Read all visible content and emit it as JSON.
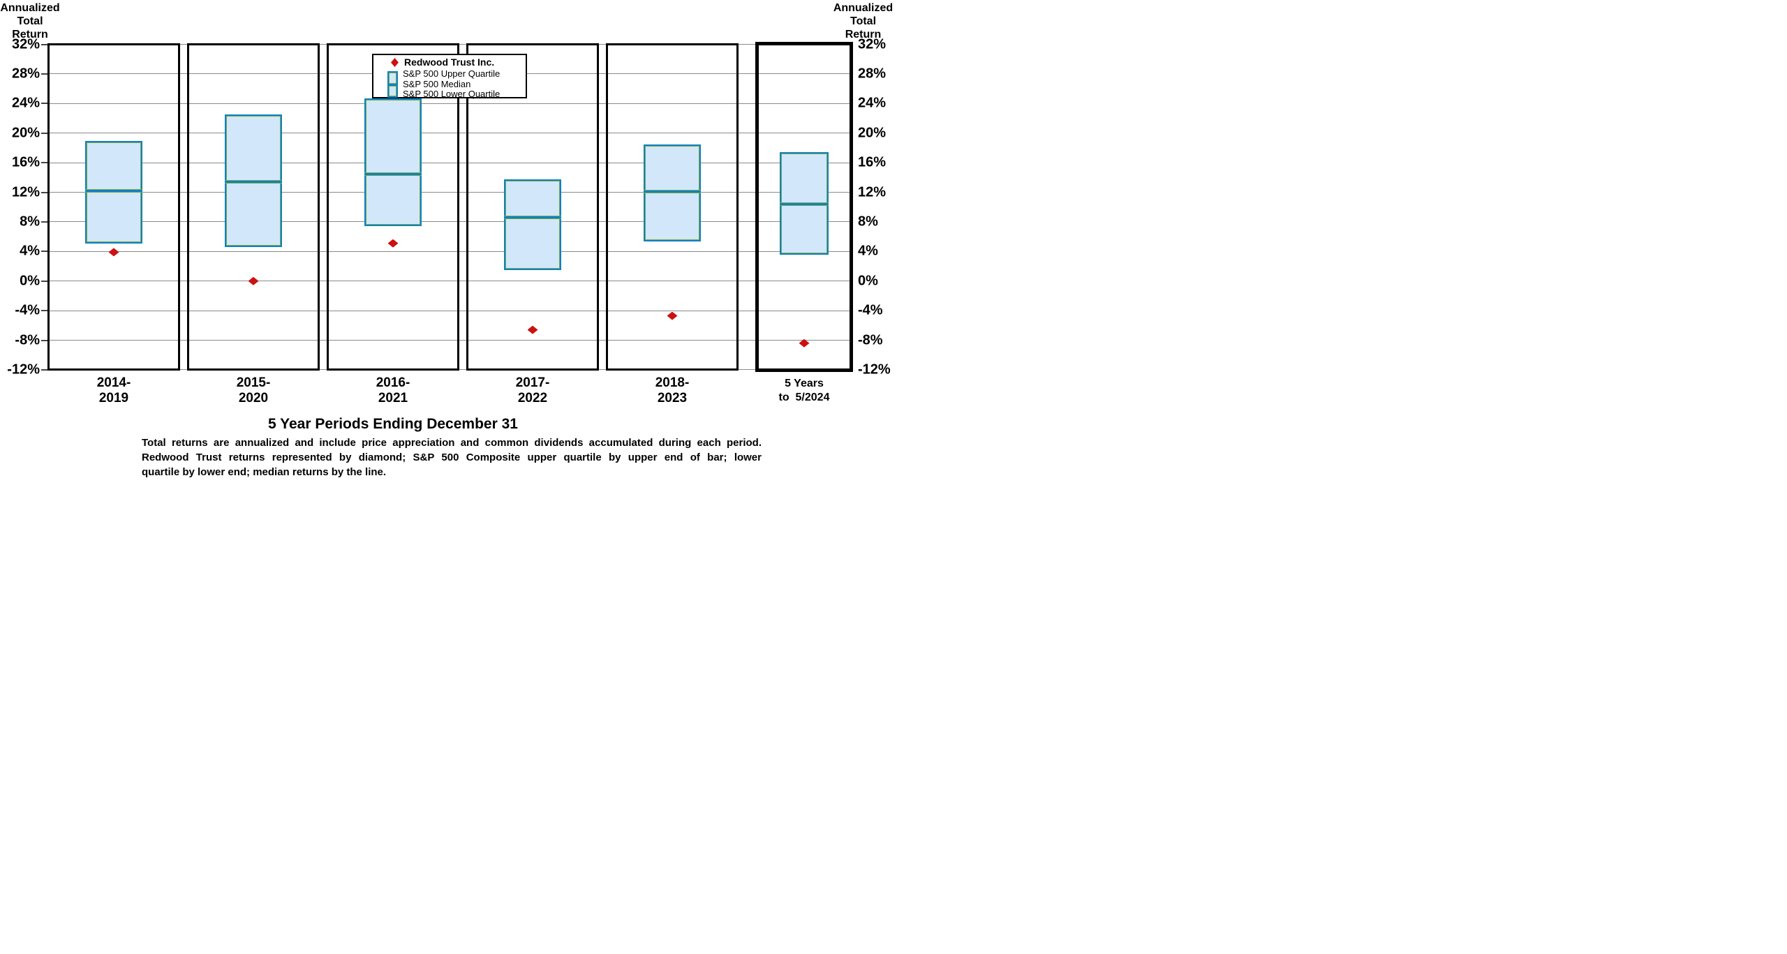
{
  "axis_titles": {
    "left_lines": [
      "Annualized",
      "Total",
      "Return"
    ],
    "right_lines": [
      "Annualized",
      "Total",
      "Return"
    ]
  },
  "x_axis": {
    "title": "5 Year Periods Ending December 31"
  },
  "y_axis": {
    "tick_labels": [
      "32%",
      "28%",
      "24%",
      "20%",
      "16%",
      "12%",
      "8%",
      "4%",
      "0%",
      "-4%",
      "-8%",
      "-12%"
    ],
    "tick_values": [
      32,
      28,
      24,
      20,
      16,
      12,
      8,
      4,
      0,
      -4,
      -8,
      -12
    ],
    "min": -12,
    "max": 32,
    "step": 4
  },
  "legend": {
    "redwood_label": "Redwood Trust Inc.",
    "items": [
      "S&P 500 Upper Quartile",
      "S&P 500 Median",
      "S&P 500 Lower Quartile"
    ]
  },
  "chart_data": {
    "type": "boxplot",
    "title": "",
    "xlabel": "5 Year Periods Ending December 31",
    "ylabel": "Annualized Total Return",
    "ylim": [
      -12,
      32
    ],
    "ytick_step": 4,
    "grid": true,
    "legend_position": "top-center",
    "categories": [
      "2014-2019",
      "2015-2020",
      "2016-2021",
      "2017-2022",
      "2018-2023",
      "5 Years to 5/2024"
    ],
    "category_label_lines": [
      [
        "2014-",
        "2019"
      ],
      [
        "2015-",
        "2020"
      ],
      [
        "2016-",
        "2021"
      ],
      [
        "2017-",
        "2022"
      ],
      [
        "2018-",
        "2023"
      ],
      [
        "5 Years",
        "to  5/2024"
      ]
    ],
    "highlighted_period": [
      false,
      false,
      false,
      false,
      false,
      true
    ],
    "series": [
      {
        "name": "Redwood Trust Inc.",
        "marker": "diamond",
        "values": [
          3.9,
          0.0,
          5.1,
          -6.6,
          -4.7,
          -8.4
        ]
      },
      {
        "name": "S&P 500 Upper Quartile",
        "marker": "box-top",
        "values": [
          18.7,
          22.3,
          24.5,
          13.6,
          18.3,
          17.2
        ]
      },
      {
        "name": "S&P 500 Median",
        "marker": "box-median-line",
        "values": [
          12.2,
          13.4,
          14.5,
          8.6,
          12.1,
          10.4
        ]
      },
      {
        "name": "S&P 500 Lower Quartile",
        "marker": "box-bottom",
        "values": [
          5.3,
          4.8,
          7.6,
          1.7,
          5.5,
          3.7
        ]
      }
    ]
  },
  "footnote": {
    "lines": [
      "Total returns are annualized and include price appreciation and common dividends accumulated during each period.",
      "Redwood Trust returns represented by diamond; S&P 500 Composite upper quartile by upper end of bar; lower",
      "quartile by lower end; median returns by the line."
    ]
  },
  "colors": {
    "diamond_red": "#cc1111",
    "box_fill": "#d2e7f9",
    "box_border_blue": "#1080c8",
    "box_inner_green": "#7cab44",
    "gridline": "#8a8a8a",
    "panel_border": "#000000",
    "background": "#ffffff"
  }
}
